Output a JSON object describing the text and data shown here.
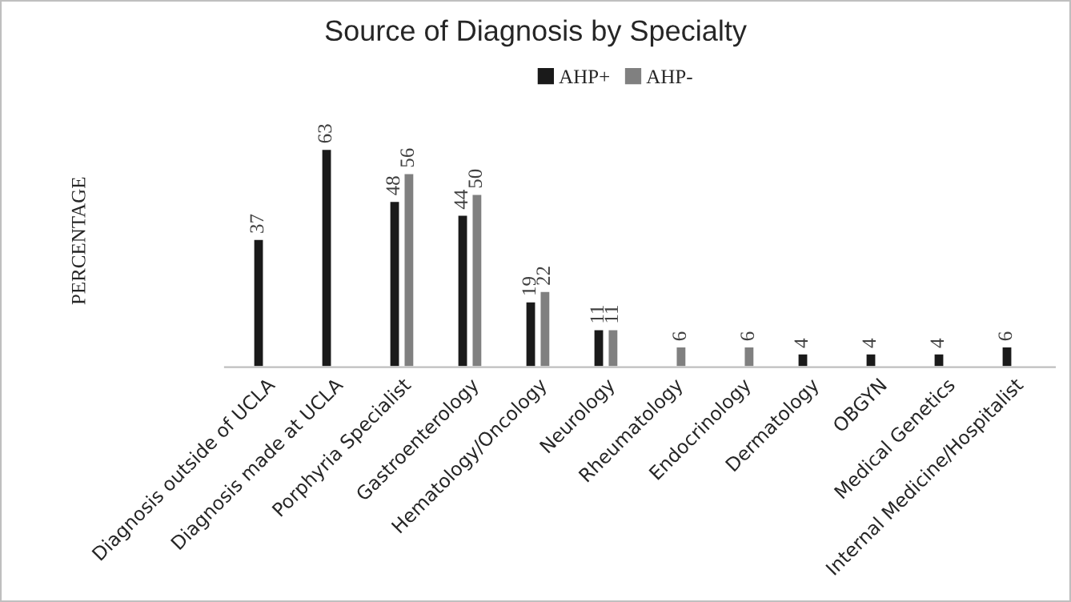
{
  "chart_data": {
    "type": "bar",
    "title": "Source of Diagnosis by Specialty",
    "ylabel": "PERCENTAGE",
    "categories": [
      "Diagnosis outside of UCLA",
      "Diagnosis made at UCLA",
      "Porphyria Specialist",
      "Gastroenterology",
      "Hematology/Oncology",
      "Neurology",
      "Rheumatology",
      "Endocrinology",
      "Dermatology",
      "OBGYN",
      "Medical Genetics",
      "Internal Medicine/Hospitalist"
    ],
    "series": [
      {
        "name": "AHP+",
        "color": "#1a1a1a",
        "values": [
          37,
          63,
          48,
          44,
          19,
          11,
          null,
          null,
          4,
          4,
          4,
          6
        ]
      },
      {
        "name": "AHP-",
        "color": "#808080",
        "values": [
          null,
          null,
          56,
          50,
          22,
          11,
          6,
          6,
          null,
          null,
          null,
          null
        ]
      }
    ],
    "data_labels": true,
    "legend": "top",
    "grid": false
  }
}
